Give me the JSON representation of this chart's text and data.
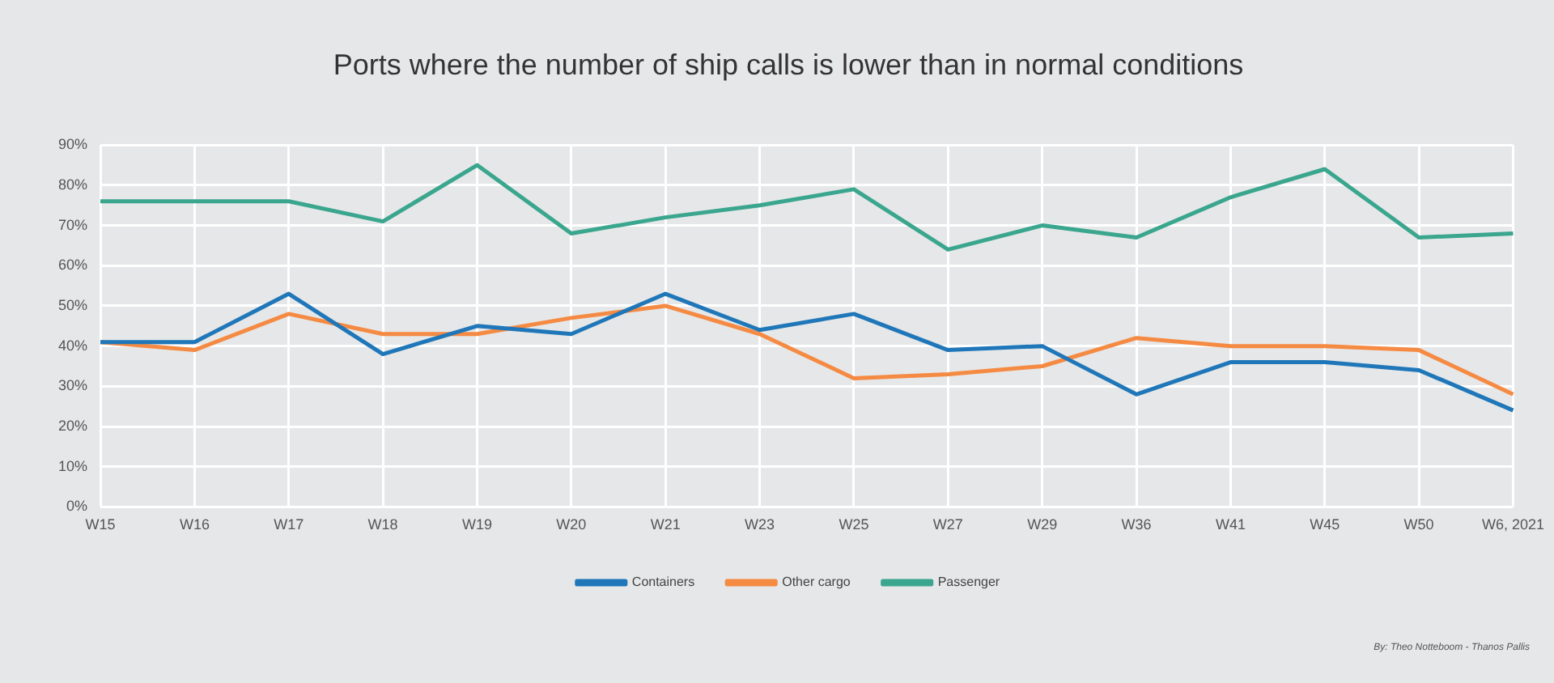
{
  "chart_data": {
    "type": "line",
    "title": "Ports where the number of ship calls is lower than in normal conditions",
    "categories": [
      "W15",
      "W16",
      "W17",
      "W18",
      "W19",
      "W20",
      "W21",
      "W23",
      "W25",
      "W27",
      "W29",
      "W36",
      "W41",
      "W45",
      "W50",
      "W6, 2021"
    ],
    "series": [
      {
        "name": "Containers",
        "color": "#1f77b9",
        "values": [
          41,
          41,
          53,
          38,
          45,
          43,
          53,
          44,
          48,
          39,
          40,
          28,
          36,
          36,
          34,
          24
        ]
      },
      {
        "name": "Other cargo",
        "color": "#f58a43",
        "values": [
          41,
          39,
          48,
          43,
          43,
          47,
          50,
          43,
          32,
          33,
          35,
          42,
          40,
          40,
          39,
          28
        ]
      },
      {
        "name": "Passenger",
        "color": "#3aa68e",
        "values": [
          76,
          76,
          76,
          71,
          85,
          68,
          72,
          75,
          79,
          64,
          70,
          67,
          77,
          84,
          67,
          68
        ]
      }
    ],
    "ylim": [
      0,
      90
    ],
    "yticks": [
      {
        "value": 0,
        "label": "0%"
      },
      {
        "value": 10,
        "label": "10%"
      },
      {
        "value": 20,
        "label": "20%"
      },
      {
        "value": 30,
        "label": "30%"
      },
      {
        "value": 40,
        "label": "40%"
      },
      {
        "value": 50,
        "label": "50%"
      },
      {
        "value": 60,
        "label": "60%"
      },
      {
        "value": 70,
        "label": "70%"
      },
      {
        "value": 80,
        "label": "80%"
      },
      {
        "value": 90,
        "label": "90%"
      }
    ],
    "grid": true,
    "legend": "bottom",
    "marker": "none",
    "line_style": "solid",
    "annotations": [
      "By: Theo Notteboom - Thanos Pallis"
    ]
  }
}
